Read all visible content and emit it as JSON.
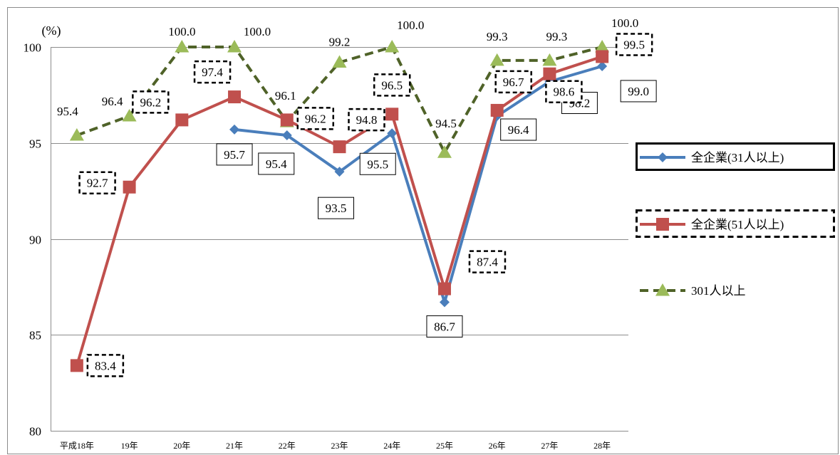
{
  "chart_data": {
    "type": "line",
    "unit_label": "(%)",
    "categories": [
      "平成18年",
      "19年",
      "20年",
      "21年",
      "22年",
      "23年",
      "24年",
      "25年",
      "26年",
      "27年",
      "28年"
    ],
    "ylim": [
      80,
      100
    ],
    "yticks": [
      80,
      85,
      90,
      95,
      100
    ],
    "grid": true,
    "legend_position": "right",
    "series": [
      {
        "name": "全企業(31人以上)",
        "color": "#4a7ebb",
        "marker": "diamond",
        "line_style": "solid",
        "values": [
          null,
          null,
          null,
          95.7,
          95.4,
          93.5,
          95.5,
          86.7,
          96.4,
          98.2,
          99.0
        ],
        "labels": [
          null,
          null,
          null,
          "95.7",
          "95.4",
          "93.5",
          "95.5",
          "86.7",
          "96.4",
          "98.2",
          "99.0"
        ],
        "label_box": "solid"
      },
      {
        "name": "全企業(51人以上)",
        "color": "#c0504d",
        "marker": "square",
        "line_style": "solid",
        "values": [
          83.4,
          92.7,
          96.2,
          97.4,
          96.2,
          94.8,
          96.5,
          87.4,
          96.7,
          98.6,
          99.5
        ],
        "labels": [
          "83.4",
          "92.7",
          "96.2",
          "97.4",
          "96.2",
          "94.8",
          "96.5",
          "87.4",
          "96.7",
          "98.6",
          "99.5"
        ],
        "label_box": "dashed"
      },
      {
        "name": "301人以上",
        "color": "#9bbb59",
        "line_color": "#4f6228",
        "marker": "triangle",
        "line_style": "dashed",
        "values": [
          95.4,
          96.4,
          100.0,
          100.0,
          96.1,
          99.2,
          100.0,
          94.5,
          99.3,
          99.3,
          100.0
        ],
        "labels": [
          "95.4",
          "96.4",
          "100.0",
          "100.0",
          "96.1",
          "99.2",
          "100.0",
          "94.5",
          "99.3",
          "99.3",
          "100.0"
        ],
        "label_box": "none"
      }
    ]
  }
}
